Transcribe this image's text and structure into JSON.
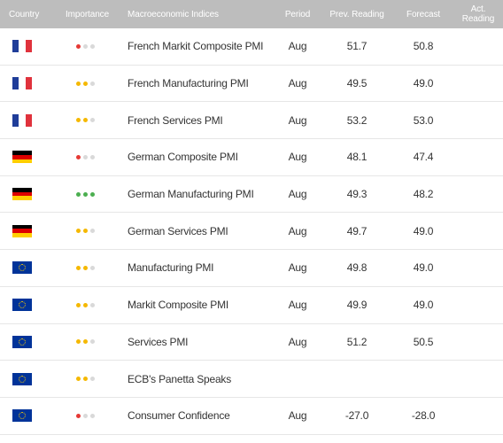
{
  "headers": {
    "country": "Country",
    "importance": "Importance",
    "indices": "Macroeconomic Indices",
    "period": "Period",
    "prev": "Prev. Reading",
    "forecast": "Forecast",
    "actual": "Act. Reading"
  },
  "colors": {
    "header_bg": "#bdbdbd",
    "importance_low": "#e53935",
    "importance_medium": "#f5b800",
    "importance_high": "#4caf50",
    "dot_inactive": "#d9d9d9"
  },
  "rows": [
    {
      "flag": "france-flag",
      "importance": 1,
      "indicator": "French Markit Composite PMI",
      "period": "Aug",
      "prev": "51.7",
      "forecast": "50.8",
      "actual": ""
    },
    {
      "flag": "france-flag",
      "importance": 2,
      "indicator": "French Manufacturing PMI",
      "period": "Aug",
      "prev": "49.5",
      "forecast": "49.0",
      "actual": ""
    },
    {
      "flag": "france-flag",
      "importance": 2,
      "indicator": "French Services PMI",
      "period": "Aug",
      "prev": "53.2",
      "forecast": "53.0",
      "actual": ""
    },
    {
      "flag": "germany-flag",
      "importance": 1,
      "indicator": "German Composite PMI",
      "period": "Aug",
      "prev": "48.1",
      "forecast": "47.4",
      "actual": ""
    },
    {
      "flag": "germany-flag",
      "importance": 3,
      "indicator": "German Manufacturing PMI",
      "period": "Aug",
      "prev": "49.3",
      "forecast": "48.2",
      "actual": ""
    },
    {
      "flag": "germany-flag",
      "importance": 2,
      "indicator": "German Services PMI",
      "period": "Aug",
      "prev": "49.7",
      "forecast": "49.0",
      "actual": ""
    },
    {
      "flag": "eu-flag",
      "importance": 2,
      "indicator": "Manufacturing PMI",
      "period": "Aug",
      "prev": "49.8",
      "forecast": "49.0",
      "actual": ""
    },
    {
      "flag": "eu-flag",
      "importance": 2,
      "indicator": "Markit Composite PMI",
      "period": "Aug",
      "prev": "49.9",
      "forecast": "49.0",
      "actual": ""
    },
    {
      "flag": "eu-flag",
      "importance": 2,
      "indicator": "Services PMI",
      "period": "Aug",
      "prev": "51.2",
      "forecast": "50.5",
      "actual": ""
    },
    {
      "flag": "eu-flag",
      "importance": 2,
      "indicator": "ECB's Panetta Speaks",
      "period": "",
      "prev": "",
      "forecast": "",
      "actual": ""
    },
    {
      "flag": "eu-flag",
      "importance": 1,
      "indicator": "Consumer Confidence",
      "period": "Aug",
      "prev": "-27.0",
      "forecast": "-28.0",
      "actual": ""
    }
  ]
}
